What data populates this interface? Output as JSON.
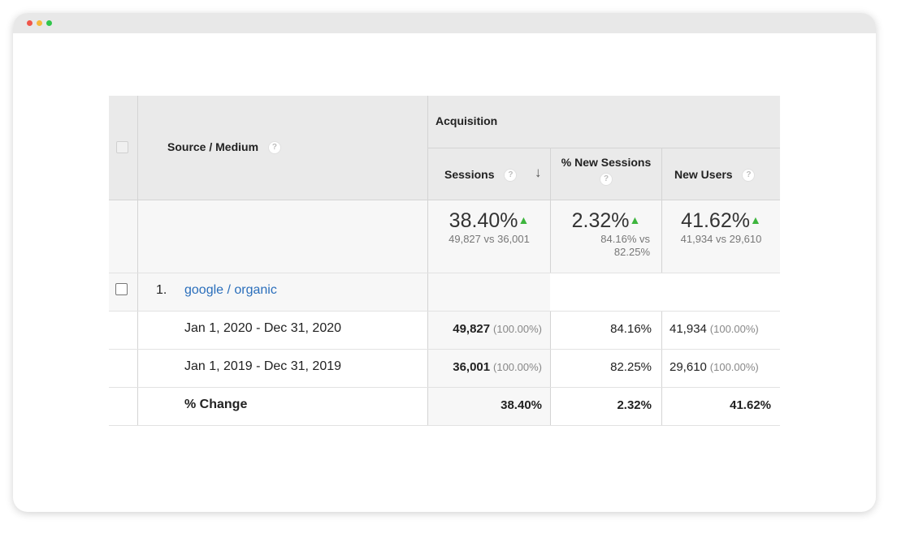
{
  "report": {
    "header": {
      "dimension_label": "Source / Medium",
      "group_label": "Acquisition",
      "help_glyph": "?",
      "sort_glyph": "↓",
      "up_glyph": "▲",
      "columns": [
        {
          "label": "Sessions"
        },
        {
          "label": "% New Sessions"
        },
        {
          "label": "New Users"
        }
      ]
    },
    "summary": [
      {
        "value": "38.40%",
        "compare": "49,827 vs 36,001"
      },
      {
        "value": "2.32%",
        "compare_line1": "84.16% vs",
        "compare_line2": "82.25%"
      },
      {
        "value": "41.62%",
        "compare": "41,934 vs 29,610"
      }
    ],
    "row": {
      "index": "1.",
      "source_link": "google / organic",
      "periods": [
        {
          "label": "Jan 1, 2020 - Dec 31, 2020",
          "sessions": "49,827",
          "sessions_pct": "(100.00%)",
          "new_sessions": "84.16%",
          "new_users": "41,934",
          "new_users_pct": "(100.00%)"
        },
        {
          "label": "Jan 1, 2019 - Dec 31, 2019",
          "sessions": "36,001",
          "sessions_pct": "(100.00%)",
          "new_sessions": "82.25%",
          "new_users": "29,610",
          "new_users_pct": "(100.00%)"
        }
      ],
      "change": {
        "label": "% Change",
        "sessions": "38.40%",
        "new_sessions": "2.32%",
        "new_users": "41.62%"
      }
    }
  },
  "colors": {
    "link": "#2a6ebb",
    "up_arrow": "#3db53d",
    "header_bg": "#eaeaea"
  }
}
